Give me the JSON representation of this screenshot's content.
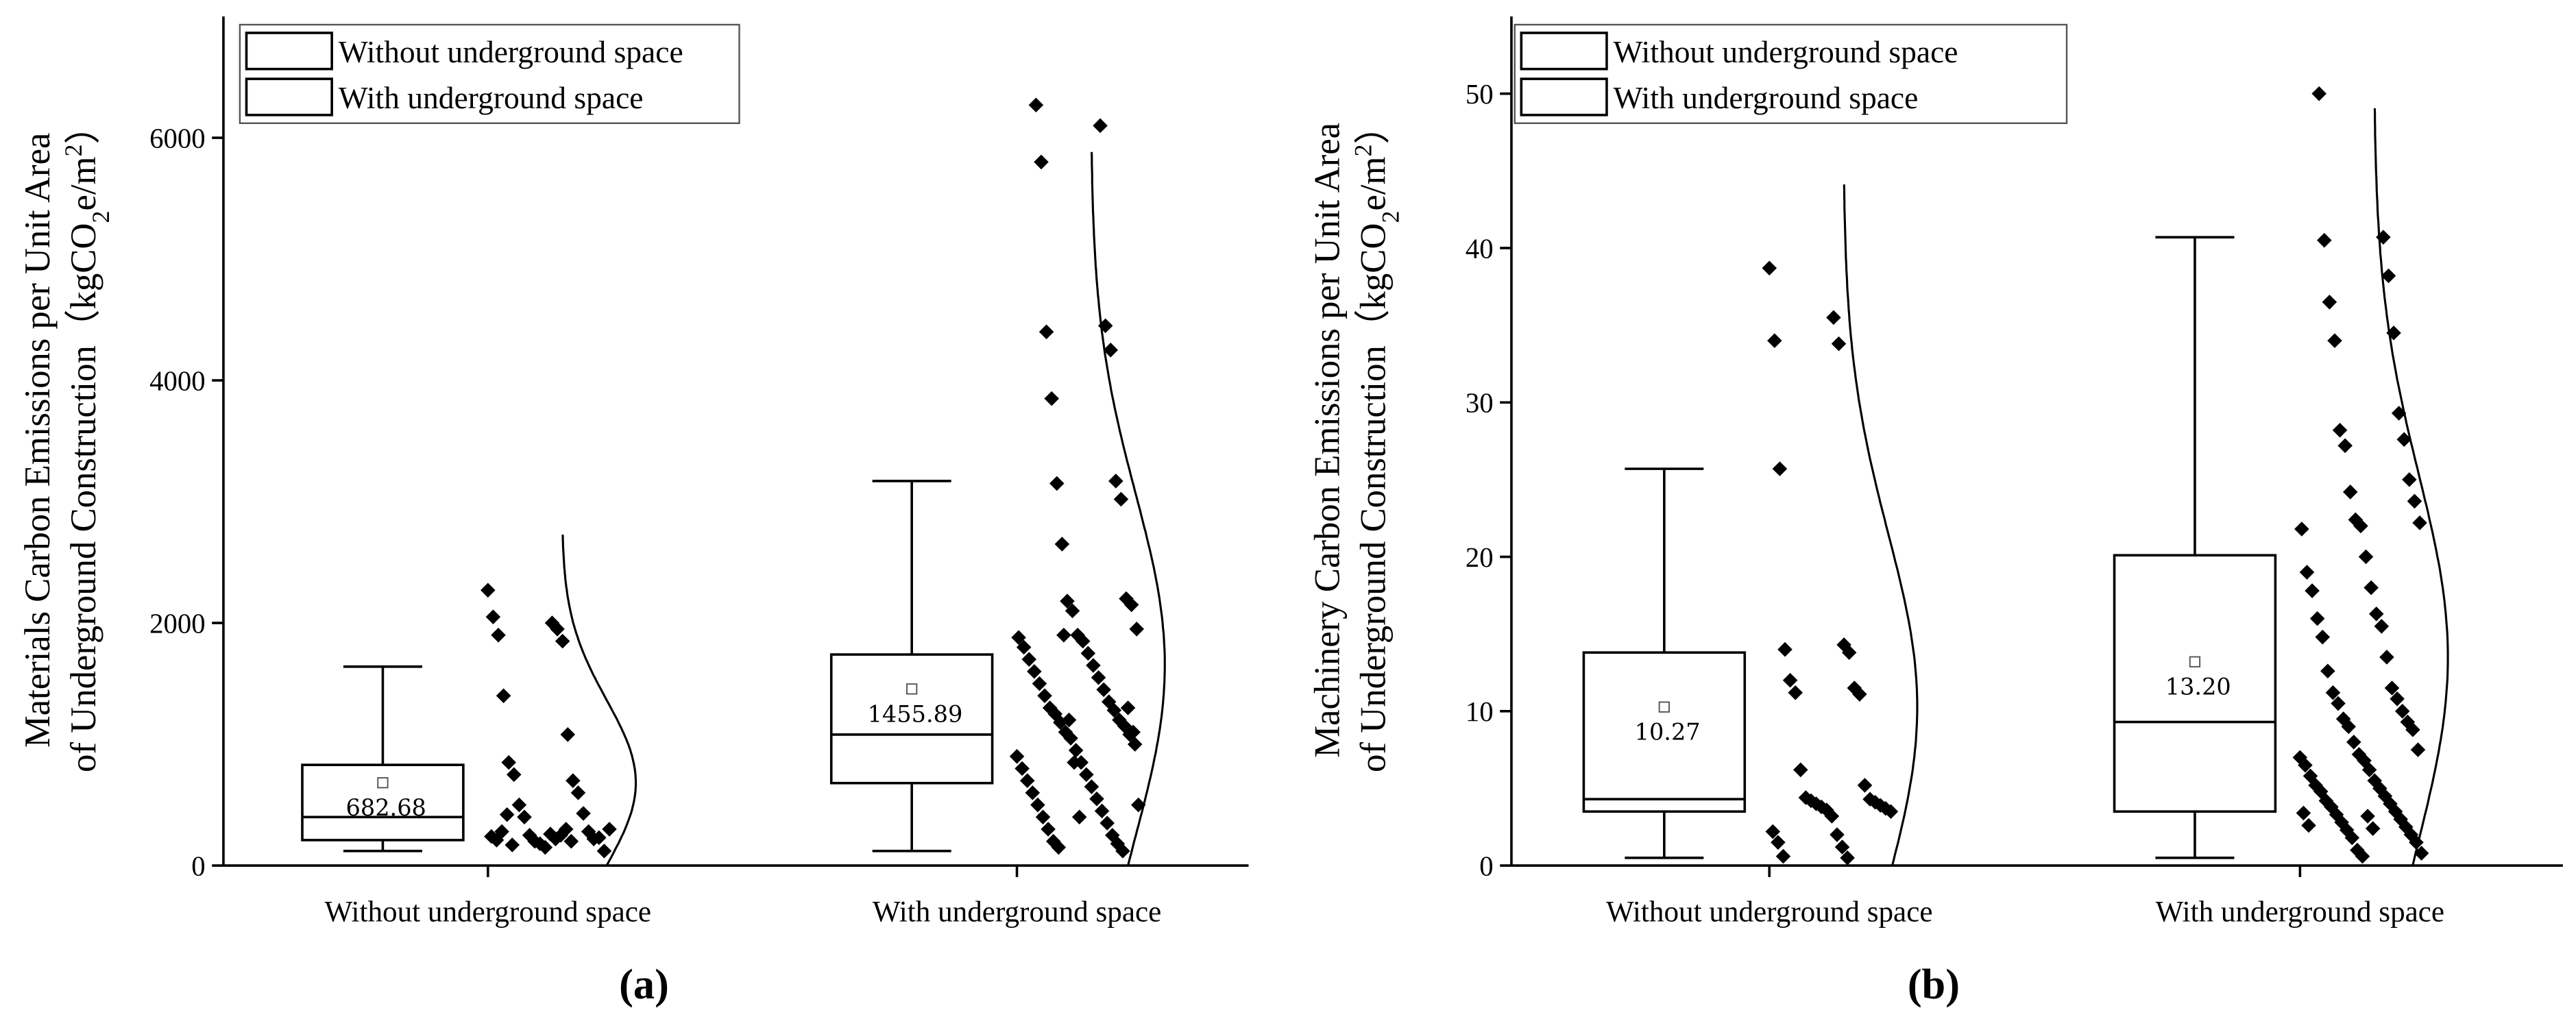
{
  "chart_data": [
    {
      "type": "box",
      "ylabel": [
        "Materials Carbon Emissions per Unit Area",
        [
          "of Underground Construction（kgCO",
          "2",
          "e/m",
          "2",
          "）"
        ]
      ],
      "categories": [
        "Without underground space",
        "With underground space"
      ],
      "panel_label": "(a)",
      "ylim": [
        0,
        7000
      ],
      "yticks": [
        0,
        2000,
        4000,
        6000
      ],
      "series": [
        {
          "name": "Without underground space",
          "color": "#000000",
          "whislo": 120,
          "q1": 210,
          "med": 400,
          "q3": 830,
          "whishi": 1640,
          "mean": 682.68,
          "values": [
            2270,
            2000,
            2050,
            1950,
            1900,
            1850,
            1400,
            1080,
            850,
            700,
            750,
            600,
            500,
            430,
            400,
            280,
            250,
            220,
            200,
            230,
            180,
            120,
            150,
            300,
            260,
            240,
            220,
            210,
            250,
            280,
            300,
            420,
            200,
            170
          ]
        },
        {
          "name": "With underground space",
          "color": "#000000",
          "whislo": 120,
          "q1": 680,
          "med": 1080,
          "q3": 1740,
          "whishi": 3170,
          "mean": 1455.89,
          "values": [
            6270,
            6100,
            5800,
            4450,
            4400,
            4250,
            3850,
            3170,
            3150,
            3020,
            2650,
            2200,
            2180,
            2150,
            2100,
            1950,
            1900,
            1880,
            1850,
            1800,
            1750,
            1700,
            1650,
            1600,
            1550,
            1500,
            1450,
            1400,
            1350,
            1300,
            1280,
            1250,
            1200,
            1180,
            1150,
            1100,
            1080,
            1050,
            1000,
            950,
            900,
            850,
            800,
            750,
            700,
            650,
            600,
            550,
            500,
            450,
            400,
            350,
            300,
            250,
            200,
            180,
            150,
            120,
            1900,
            1300,
            1200,
            1100,
            850,
            500,
            400
          ]
        }
      ]
    },
    {
      "type": "box",
      "ylabel": [
        "Machinery Carbon Emissions per Unit Area",
        [
          "of Underground Construction（kgCO",
          "2",
          "e/m",
          "2",
          "）"
        ]
      ],
      "categories": [
        "Without underground space",
        "With underground space"
      ],
      "panel_label": "(b)",
      "ylim": [
        0,
        55
      ],
      "yticks": [
        0,
        10,
        20,
        30,
        40,
        50
      ],
      "series": [
        {
          "name": "Without underground space",
          "color": "#000000",
          "whislo": 0.5,
          "q1": 3.5,
          "med": 4.3,
          "q3": 13.8,
          "whishi": 25.7,
          "mean": 10.27,
          "values": [
            38.7,
            35.5,
            34,
            33.8,
            25.7,
            14.3,
            14,
            13.8,
            12,
            11.5,
            11.2,
            11.1,
            6.2,
            5.2,
            4.4,
            4.3,
            4.2,
            4.1,
            4,
            3.9,
            3.8,
            3.7,
            3.6,
            3.5,
            3.2,
            2.2,
            2,
            1.5,
            1.2,
            0.6,
            0.5
          ]
        },
        {
          "name": "With underground space",
          "color": "#000000",
          "whislo": 0.5,
          "q1": 3.5,
          "med": 9.3,
          "q3": 20.1,
          "whishi": 40.7,
          "mean": 13.2,
          "mean_label": "13.20",
          "values": [
            50,
            40.7,
            40.5,
            38.2,
            36.5,
            34.5,
            34,
            29.3,
            28.2,
            27.6,
            27.2,
            25,
            24.2,
            23.6,
            22.4,
            22.2,
            22,
            21.8,
            20,
            19,
            18,
            17.8,
            16.3,
            16,
            15.5,
            14.8,
            13.5,
            12.6,
            11.5,
            11.2,
            10.8,
            10.5,
            10,
            9.5,
            9.3,
            9,
            8.8,
            8,
            7.5,
            7.2,
            7,
            6.8,
            6.5,
            6.2,
            5.8,
            5.5,
            5.2,
            5,
            4.8,
            4.5,
            4.2,
            4,
            3.8,
            3.5,
            3.3,
            3,
            2.8,
            2.5,
            2.3,
            2,
            1.8,
            1.5,
            1,
            0.8,
            0.6,
            3.4,
            3.2,
            2.6,
            2.4
          ]
        }
      ]
    }
  ]
}
